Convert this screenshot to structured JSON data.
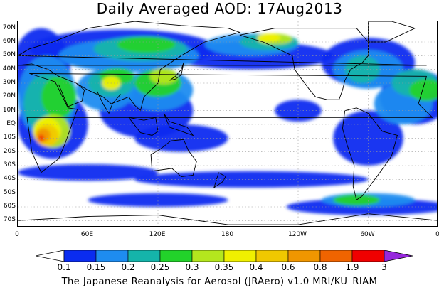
{
  "title": "Daily Averaged AOD: 17Aug2013",
  "footer": "The Japanese Reanalysis for Aerosol (JRAero) v1.0 MRI/KU_RIAM",
  "lat_labels": [
    "70N",
    "60N",
    "50N",
    "40N",
    "30N",
    "20N",
    "10N",
    "EQ",
    "10S",
    "20S",
    "30S",
    "40S",
    "50S",
    "60S",
    "70S"
  ],
  "lon_labels": [
    "0",
    "60E",
    "120E",
    "180",
    "120W",
    "60W",
    "0"
  ],
  "colorbar": {
    "labels": [
      "0.1",
      "0.15",
      "0.2",
      "0.25",
      "0.3",
      "0.35",
      "0.4",
      "0.6",
      "0.8",
      "1.9",
      "3"
    ],
    "colors": [
      "#ffffff",
      "#0a2cf0",
      "#1e8cf0",
      "#15b4aa",
      "#22d22a",
      "#b4e61e",
      "#f0f000",
      "#f0c800",
      "#f09600",
      "#f06400",
      "#f00000",
      "#9628dc"
    ]
  },
  "colors": {
    "coastline": "#000000",
    "grid": "#9a9a9a"
  }
}
